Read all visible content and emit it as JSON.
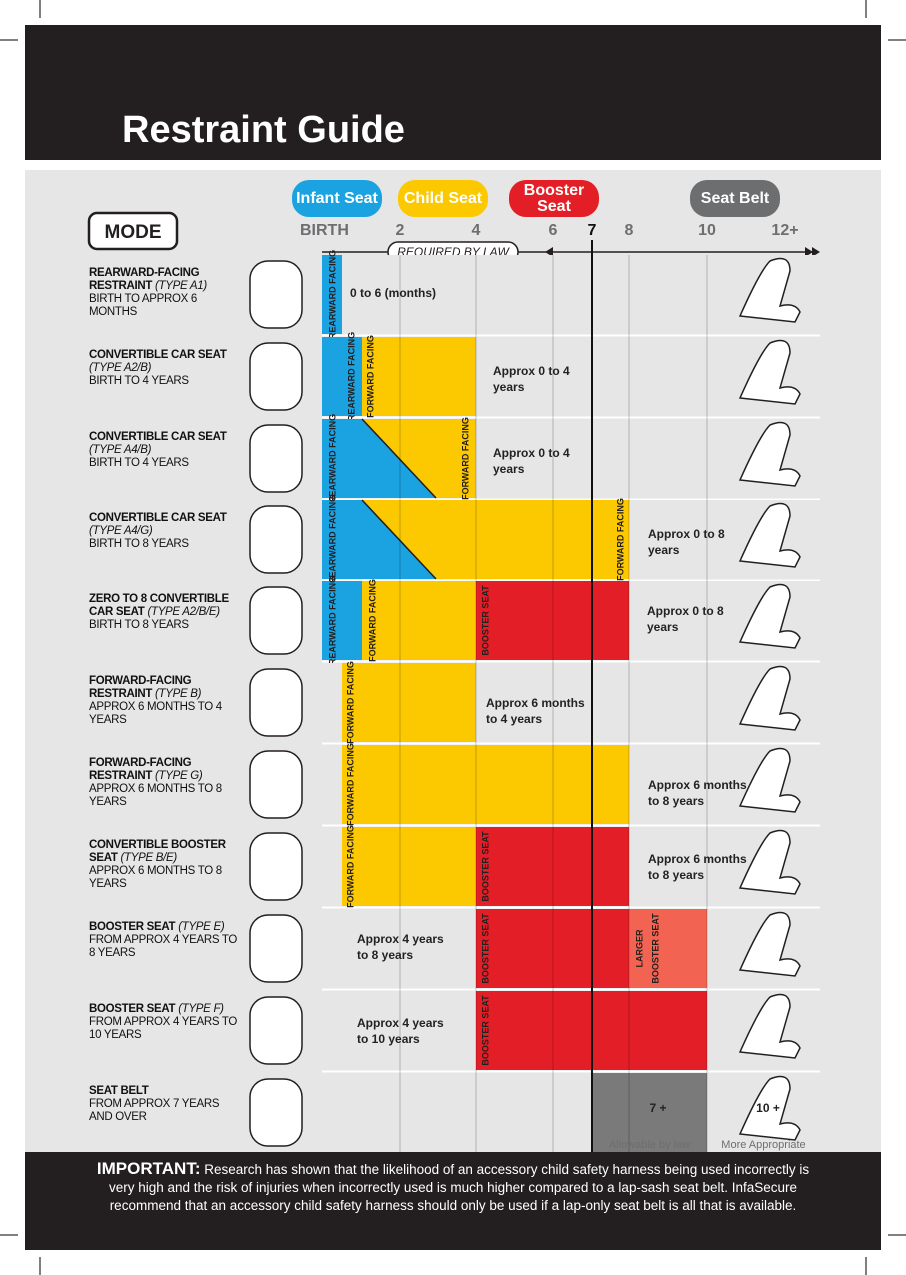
{
  "header": {
    "title": "Restraint Guide"
  },
  "stages": [
    "Infant Seat",
    "Child Seat",
    "Booster Seat",
    "Seat Belt"
  ],
  "mode_label": "MODE",
  "ages": [
    "BIRTH",
    "2",
    "4",
    "6",
    "7",
    "8",
    "10",
    "12+"
  ],
  "required_label": "REQUIRED BY LAW",
  "rows": [
    {
      "name": "REARWARD-FACING RESTRAINT",
      "type": "(TYPE A1)",
      "desc": "BIRTH TO APPROX 6 MONTHS",
      "bars": [
        "REARWARD FACING"
      ],
      "notes": [
        "0 to 6 (months)"
      ]
    },
    {
      "name": "CONVERTIBLE CAR SEAT",
      "type": "(TYPE A2/B)",
      "desc": "BIRTH TO 4 YEARS",
      "bars": [
        "REARWARD FACING",
        "FORWARD FACING"
      ],
      "notes": [
        "Approx 0 to 4 years"
      ]
    },
    {
      "name": "CONVERTIBLE CAR SEAT",
      "type": "(TYPE A4/B)",
      "desc": "BIRTH TO 4 YEARS",
      "bars": [
        "REARWARD FACING",
        "FORWARD FACING"
      ],
      "notes": [
        "Approx 0 to 4 years"
      ]
    },
    {
      "name": "CONVERTIBLE CAR SEAT",
      "type": "(TYPE A4/G)",
      "desc": "BIRTH TO 8 YEARS",
      "bars": [
        "REARWARD FACING",
        "FORWARD FACING"
      ],
      "notes": [
        "Approx 0 to 8 years"
      ]
    },
    {
      "name": "ZERO TO 8 CONVERTIBLE CAR SEAT",
      "type": "(TYPE A2/B/E)",
      "desc": "BIRTH TO 8 YEARS",
      "bars": [
        "REARWARD FACING",
        "FORWARD FACING",
        "BOOSTER SEAT"
      ],
      "notes": [
        "Approx 0 to 8 years"
      ]
    },
    {
      "name": "FORWARD-FACING RESTRAINT",
      "type": "(TYPE B)",
      "desc": "APPROX 6 MONTHS TO 4 YEARS",
      "bars": [
        "FORWARD FACING"
      ],
      "notes": [
        "Approx 6 months to 4 years"
      ]
    },
    {
      "name": "FORWARD-FACING RESTRAINT",
      "type": "(TYPE G)",
      "desc": "APPROX 6 MONTHS TO 8 YEARS",
      "bars": [
        "FORWARD FACING"
      ],
      "notes": [
        "Approx 6 months to 8 years"
      ]
    },
    {
      "name": "CONVERTIBLE BOOSTER SEAT",
      "type": "(TYPE B/E)",
      "desc": "APPROX 6 MONTHS TO 8 YEARS",
      "bars": [
        "FORWARD FACING",
        "BOOSTER SEAT"
      ],
      "notes": [
        "Approx 6 months to 8 years"
      ]
    },
    {
      "name": "BOOSTER SEAT",
      "type": "(TYPE E)",
      "desc": "FROM APPROX 4 YEARS TO 8 YEARS",
      "bars": [
        "BOOSTER SEAT",
        "LARGER",
        "BOOSTER SEAT"
      ],
      "notes": [
        "Approx 4 years to 8 years"
      ]
    },
    {
      "name": "BOOSTER SEAT",
      "type": "(TYPE F)",
      "desc": "FROM APPROX 4 YEARS TO 10 YEARS",
      "bars": [
        "BOOSTER SEAT"
      ],
      "notes": [
        "Approx 4 years to 10 years"
      ]
    },
    {
      "name": "SEAT BELT",
      "type": "",
      "desc": "FROM APPROX 7 YEARS AND OVER",
      "bars": [],
      "notes": [
        "7 +",
        "10 +"
      ]
    }
  ],
  "captions": [
    "Allowable by law",
    "More Appropriate"
  ],
  "footer": {
    "label": "IMPORTANT:",
    "text": "Research has shown that the likelihood of an accessory child safety harness being used incorrectly is very high and the risk of injuries when incorrectly used is much higher compared to a lap-sash seat belt. InfaSecure recommend that an accessory child safety harness should only be used if a lap-only seat belt is all that is available."
  }
}
